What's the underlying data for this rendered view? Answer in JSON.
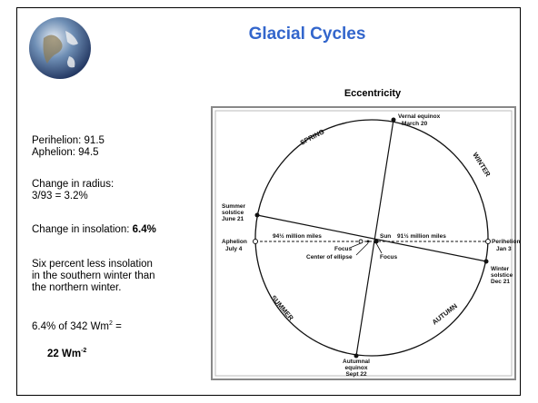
{
  "header": {
    "title": "Glacial Cycles"
  },
  "notes": {
    "perihelion": "Perihelion: 91.5",
    "aphelion": "Aphelion: 94.5",
    "radius_label": "Change in radius:",
    "radius_calc": "3/93 = 3.2%",
    "insolation_label": "Change in insolation:",
    "insolation_value": "6.4%",
    "lines": [
      "Six percent less insolation",
      "in the southern winter than",
      "the northern winter."
    ],
    "flux": {
      "text": "6.4% of 342 Wm",
      "sup": "2",
      "tail": "="
    },
    "result": {
      "text": "22 Wm",
      "sup": "-2"
    }
  },
  "figure": {
    "title": "Eccentricity",
    "vernal": [
      "Vernal equinox",
      "March 20"
    ],
    "autumnal": [
      "Autumnal",
      "equinox",
      "Sept 22"
    ],
    "summer_solstice": [
      "Summer",
      "solstice",
      "June 21"
    ],
    "winter_solstice": [
      "Winter",
      "solstice",
      "Dec 21"
    ],
    "aphelion": [
      "Aphelion",
      "July 4"
    ],
    "perihelion": [
      "Perihelion",
      "Jan 3"
    ],
    "aphelion_distance": "94½ million miles",
    "perihelion_distance": "91½ million miles",
    "sun": "Sun",
    "focus_left": "Focus",
    "focus_right": "Focus",
    "center": "Center of ellipse",
    "seasons": {
      "spring": "SPRING",
      "winter": "WINTER",
      "summer": "SUMMER",
      "autumn": "AUTUMN"
    }
  }
}
